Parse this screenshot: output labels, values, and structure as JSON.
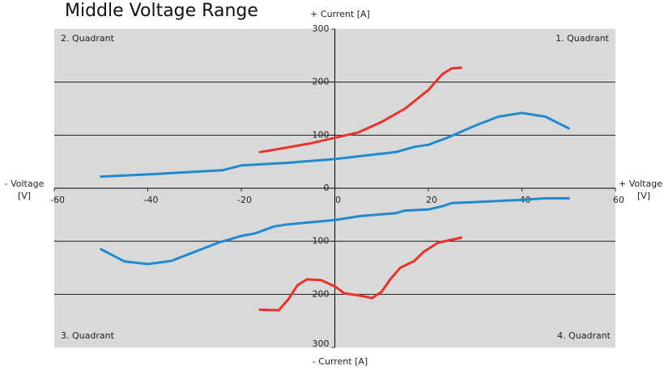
{
  "chart_data": {
    "type": "line",
    "title": "Middle Voltage Range",
    "y_label_top": "+ Current [A]",
    "y_label_bottom": "- Current [A]",
    "x_label_left": [
      "- Voltage",
      "[V]"
    ],
    "x_label_right": [
      "+ Voltage",
      "[V]"
    ],
    "quadrants": [
      "1. Quadrant",
      "2. Quadrant",
      "3. Quadrant",
      "4. Quadrant"
    ],
    "xlim": [
      -60,
      60
    ],
    "ylim": [
      -300,
      300
    ],
    "xticks": [
      -60,
      -40,
      -20,
      0,
      20,
      40,
      60
    ],
    "yticks": [
      {
        "value": -300,
        "label": "300"
      },
      {
        "value": -200,
        "label": "200"
      },
      {
        "value": -100,
        "label": "100"
      },
      0,
      100,
      200,
      300
    ],
    "grid": true,
    "background": "#d9d9d9",
    "series": [
      {
        "color": "#e8332b",
        "x": [
          -16,
          -10,
          -5,
          0,
          5,
          10,
          15,
          20,
          23,
          25,
          27
        ],
        "values": [
          68,
          77,
          85,
          95,
          105,
          125,
          150,
          185,
          215,
          226,
          227
        ]
      },
      {
        "color": "#1f8ad0",
        "x": [
          -50,
          -40,
          -30,
          -24,
          -20,
          -10,
          0,
          10,
          13,
          17,
          20,
          24,
          30,
          35,
          40,
          45,
          50
        ],
        "values": [
          22,
          26,
          31,
          34,
          43,
          48,
          55,
          65,
          68,
          78,
          82,
          95,
          118,
          135,
          142,
          135,
          113
        ]
      },
      {
        "color": "#1f8ad0",
        "x": [
          -50,
          -45,
          -40,
          -35,
          -30,
          -25,
          -20,
          -17,
          -13,
          -10,
          0,
          5,
          10,
          13,
          15,
          20,
          23,
          25,
          30,
          40,
          45,
          50
        ],
        "values": [
          -115,
          -138,
          -143,
          -137,
          -120,
          -103,
          -90,
          -85,
          -72,
          -68,
          -60,
          -53,
          -49,
          -47,
          -42,
          -40,
          -34,
          -28,
          -26,
          -22,
          -19,
          -19
        ]
      },
      {
        "color": "#e8332b",
        "x": [
          -16,
          -12,
          -10,
          -8,
          -6,
          -3,
          0,
          2,
          5,
          8,
          10,
          12,
          14,
          17,
          19,
          22,
          24,
          27
        ],
        "values": [
          -229,
          -230,
          -210,
          -183,
          -172,
          -173,
          -185,
          -198,
          -202,
          -207,
          -195,
          -170,
          -150,
          -137,
          -120,
          -103,
          -99,
          -93
        ]
      }
    ]
  }
}
